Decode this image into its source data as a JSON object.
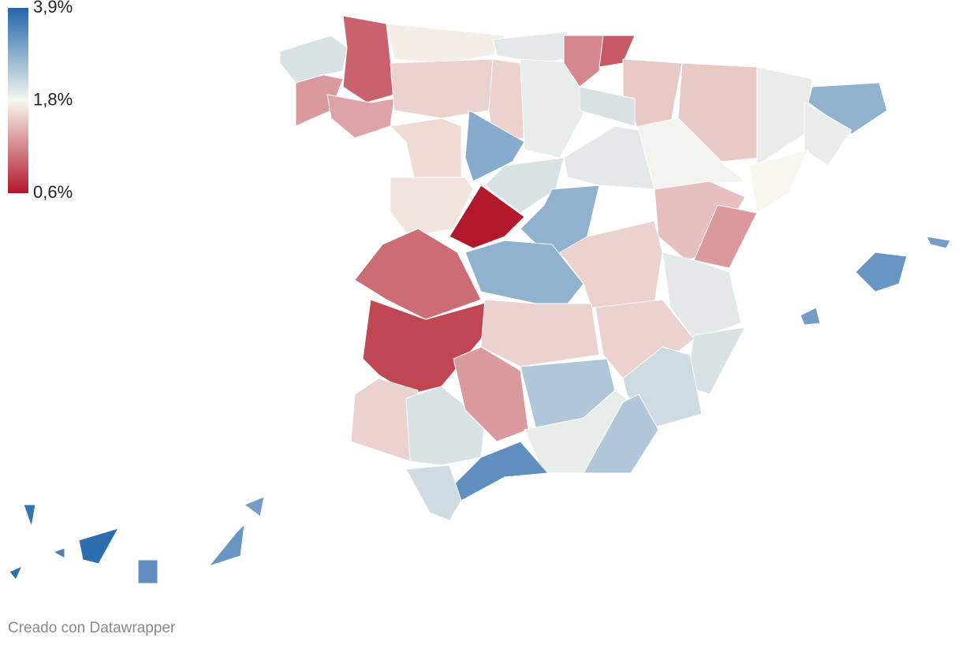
{
  "legend": {
    "ticks": [
      {
        "value": 3.9,
        "label": "3,9%"
      },
      {
        "value": 1.8,
        "label": "1,8%"
      },
      {
        "value": 0.6,
        "label": "0,6%"
      }
    ],
    "colors": [
      "#b2182b",
      "#f7f7ef",
      "#2166ac"
    ]
  },
  "regions": {
    "values": [
      2.1,
      1.0,
      1.3,
      1.35,
      1.75,
      2.0,
      1.6,
      1.6,
      1.95,
      1.2,
      0.95,
      1.55,
      2.1,
      1.55,
      1.95,
      2.8,
      1.95,
      1.8,
      1.85,
      1.65,
      2.9,
      1.7,
      0.6,
      2.1,
      2.0,
      2.8,
      1.6,
      1.5,
      1.3,
      2.0,
      1.05,
      2.8,
      0.85,
      1.6,
      1.6,
      2.1,
      2.2,
      1.6,
      2.1,
      1.3,
      2.5,
      1.95,
      2.5,
      3.3,
      2.2,
      3.2,
      3.1,
      3.1,
      3.7,
      3.8,
      3.3,
      3.2,
      3.1,
      3.5,
      3.8
    ]
  },
  "footer": "Creado con Datawrapper"
}
